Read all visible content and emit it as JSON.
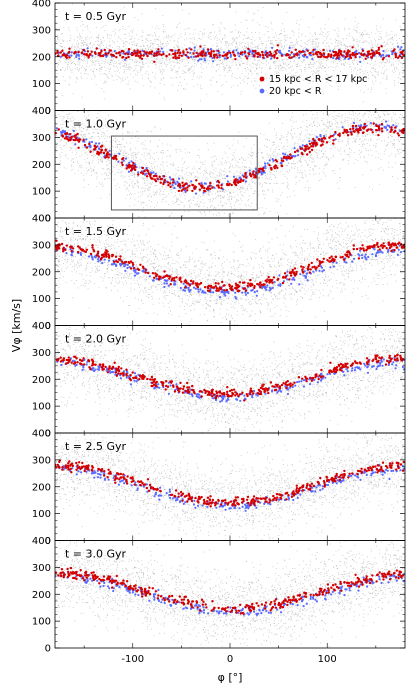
{
  "chart_data": {
    "type": "scatter",
    "xlabel": "φ [°]",
    "ylabel": "Vφ [km/s]",
    "xlim": [
      -180,
      180
    ],
    "ylim": [
      0,
      400
    ],
    "xticks": [
      -100,
      0,
      100
    ],
    "yticks": [
      0,
      100,
      200,
      300,
      400
    ],
    "legend": {
      "placement": "right",
      "panel": 0,
      "entries": [
        "15 kpc < R < 17 kpc",
        "20 kpc < R"
      ]
    },
    "series_colors": {
      "background": "#9a9a9a",
      "inner": "#d40000",
      "outer": "#5a6cff"
    },
    "panels": [
      {
        "label": "t = 0.5 Gyr",
        "mean": 210,
        "amp": 0,
        "phase": 0,
        "outer_offset": 0
      },
      {
        "label": "t = 1.0 Gyr",
        "mean": 225,
        "amp": 110,
        "phase": 60,
        "outer_offset": 5
      },
      {
        "label": "t = 1.5 Gyr",
        "mean": 220,
        "amp": 78,
        "phase": 85,
        "outer_offset": -18
      },
      {
        "label": "t = 2.0 Gyr",
        "mean": 210,
        "amp": 65,
        "phase": 85,
        "outer_offset": -12
      },
      {
        "label": "t = 2.5 Gyr",
        "mean": 210,
        "amp": 70,
        "phase": 90,
        "outer_offset": -12
      },
      {
        "label": "t = 3.0 Gyr",
        "mean": 210,
        "amp": 65,
        "phase": 95,
        "outer_offset": -12
      }
    ],
    "box": {
      "panel": 1,
      "x": [
        -122,
        28
      ],
      "y": [
        30,
        305
      ]
    }
  }
}
